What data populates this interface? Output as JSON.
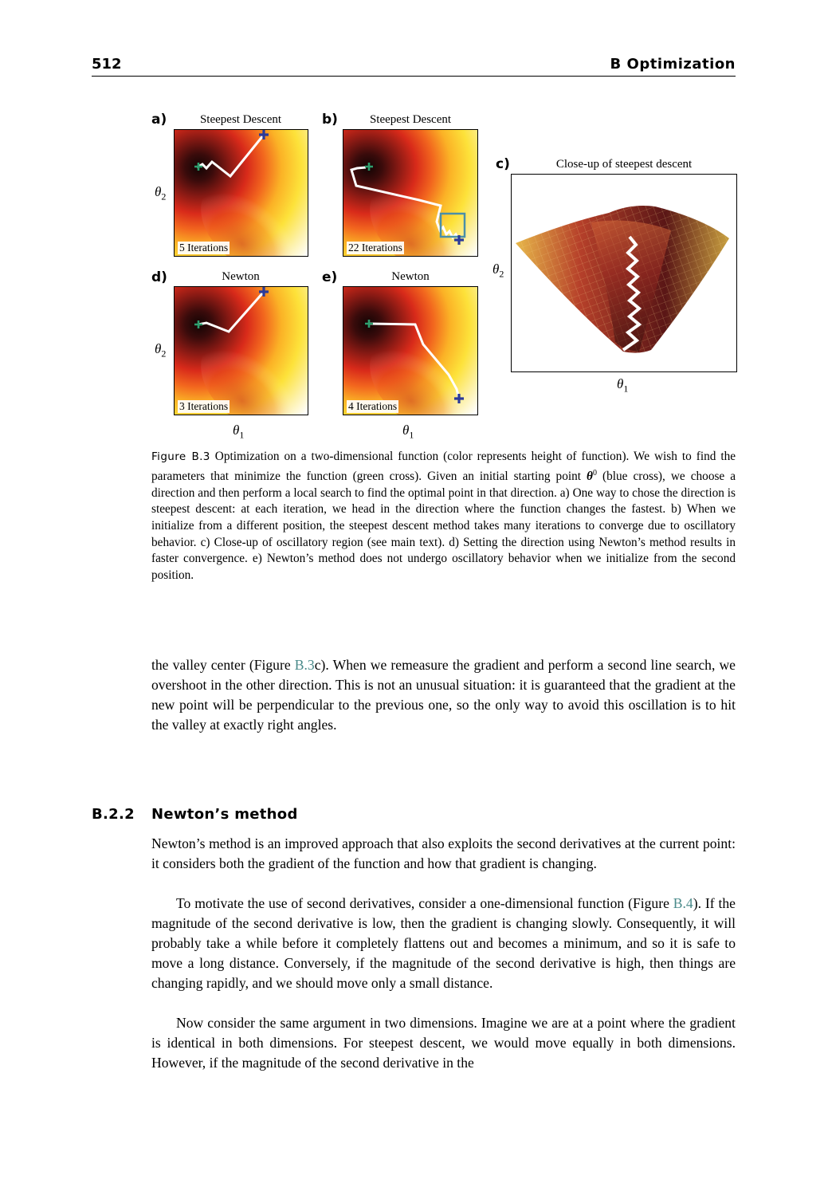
{
  "header": {
    "page_number": "512",
    "running_title": "B Optimization"
  },
  "figure": {
    "panels": [
      {
        "letter": "a)",
        "title": "Steepest Descent",
        "iterations": "5 Iterations"
      },
      {
        "letter": "b)",
        "title": "Steepest Descent",
        "iterations": "22 Iterations"
      },
      {
        "letter": "c)",
        "title": "Close-up of steepest descent"
      },
      {
        "letter": "d)",
        "title": "Newton",
        "iterations": "3 Iterations"
      },
      {
        "letter": "e)",
        "title": "Newton",
        "iterations": "4 Iterations"
      }
    ],
    "axis": {
      "theta": "θ",
      "sub1": "1",
      "sub2": "2"
    },
    "colors": {
      "path": "#ffffff",
      "start_cross": "#2b3a9a",
      "minimum_cross": "#2e9e6e",
      "closeup_box": "#4a8fa8"
    }
  },
  "caption": {
    "label": "Figure B.3",
    "text_1": "Optimization on a two-dimensional function (color represents height of function). We wish to find the parameters that minimize the function (green cross). Given an initial starting point",
    "theta": "θ",
    "sup": "0",
    "text_2": "(blue cross), we choose a direction and then perform a local search to find the optimal point in that direction. a) One way to chose the direction is steepest descent: at each iteration, we head in the direction where the function changes the fastest. b) When we initialize from a different position, the steepest descent method takes many iterations to converge due to oscillatory behavior. c) Close-up of oscillatory region (see main text). d) Setting the direction using Newton’s method results in faster convergence. e) Newton’s method does not undergo oscillatory behavior when we initialize from the second position."
  },
  "body": {
    "para1_a": "the valley center (Figure",
    "para1_ref": "B.3",
    "para1_b": "c). When we remeasure the gradient and perform a second line search, we overshoot in the other direction. This is not an unusual situation: it is guaranteed that the gradient at the new point will be perpendicular to the previous one, so the only way to avoid this oscillation is to hit the valley at exactly right angles.",
    "section_number": "B.2.2",
    "section_title": "Newton’s method",
    "para2": "Newton’s method is an improved approach that also exploits the second derivatives at the current point: it considers both the gradient of the function and how that gradient is changing.",
    "para3_a": "To motivate the use of second derivatives, consider a one-dimensional function (Figure",
    "para3_ref": "B.4",
    "para3_b": "). If the magnitude of the second derivative is low, then the gradient is changing slowly. Consequently, it will probably take a while before it completely flattens out and becomes a minimum, and so it is safe to move a long distance. Conversely, if the magnitude of the second derivative is high, then things are changing rapidly, and we should move only a small distance.",
    "para4": "Now consider the same argument in two dimensions. Imagine we are at a point where the gradient is identical in both dimensions. For steepest descent, we would move equally in both dimensions. However, if the magnitude of the second derivative in the"
  }
}
